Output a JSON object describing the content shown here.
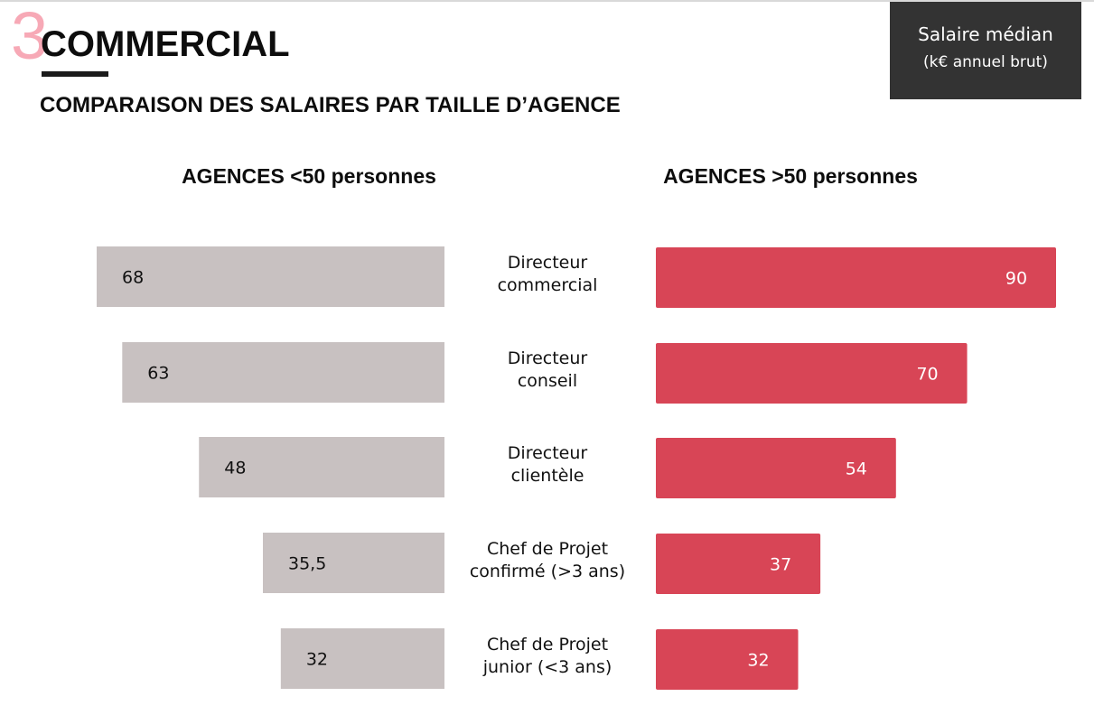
{
  "header": {
    "section_number": "3",
    "title": "COMMERCIAL",
    "subtitle": "COMPARAISON DES SALAIRES PAR TAILLE D’AGENCE"
  },
  "unit_box": {
    "line1": "Salaire médian",
    "line2": "(k€ annuel brut)"
  },
  "colors": {
    "small_agencies": "#c8c1c1",
    "large_agencies": "#d84556",
    "accent_number": "#f7a9b6",
    "unit_box_bg": "#333333"
  },
  "chart_data": {
    "type": "bar",
    "orientation": "horizontal",
    "layout": "back-to-back",
    "categories": [
      [
        "Directeur",
        "commercial"
      ],
      [
        "Directeur",
        "conseil"
      ],
      [
        "Directeur",
        "clientèle"
      ],
      [
        "Chef de Projet",
        "confirmé (>3 ans)"
      ],
      [
        "Chef de Projet",
        "junior (<3 ans)"
      ]
    ],
    "series": [
      {
        "name": "AGENCES <50 personnes",
        "values": [
          68,
          63,
          48,
          35.5,
          32
        ],
        "labels": [
          "68",
          "63",
          "48",
          "35,5",
          "32"
        ],
        "color": "#c8c1c1",
        "side": "left"
      },
      {
        "name": "AGENCES >50 personnes",
        "values": [
          90,
          70,
          54,
          37,
          32
        ],
        "labels": [
          "90",
          "70",
          "54",
          "37",
          "32"
        ],
        "color": "#d84556",
        "side": "right"
      }
    ],
    "legend": "panel headers",
    "grid": false
  }
}
